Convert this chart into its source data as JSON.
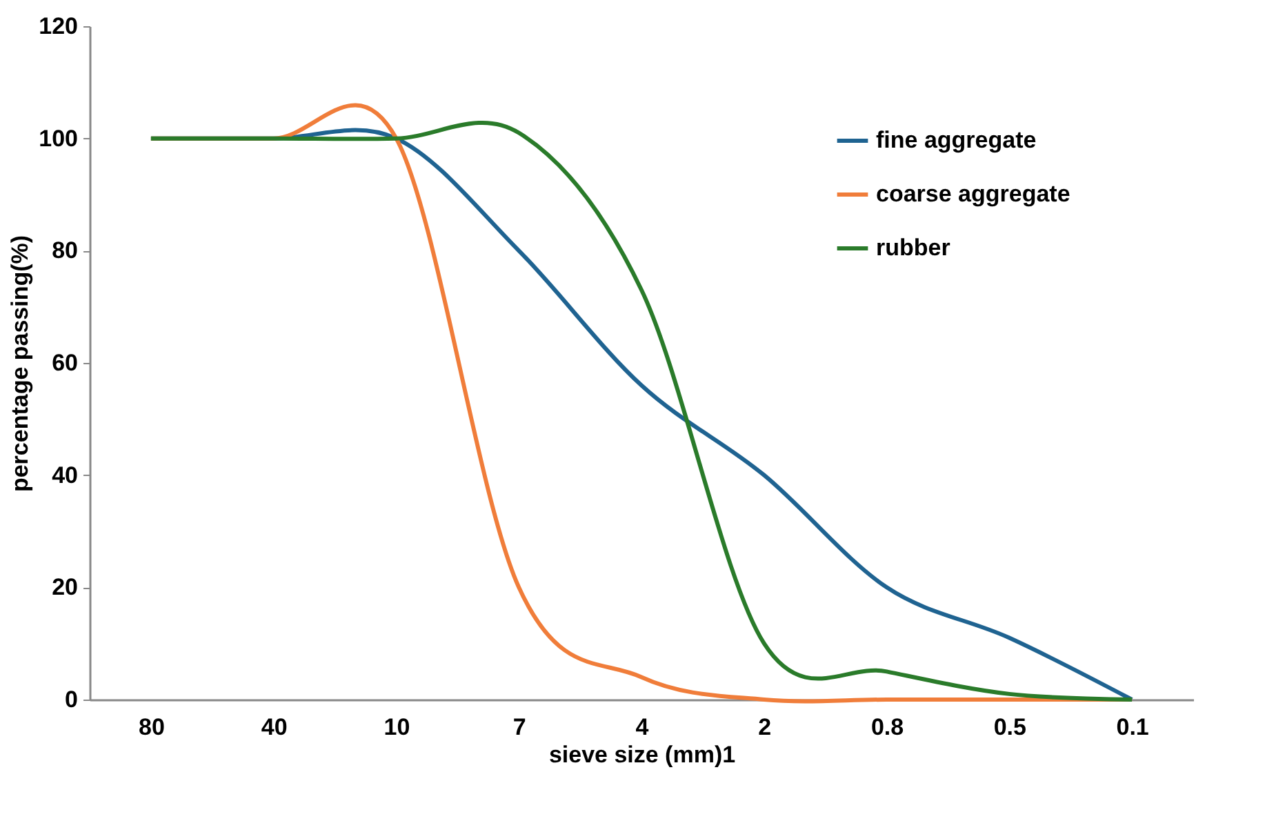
{
  "chart_data": {
    "type": "line",
    "xlabel": "sieve size (mm)1",
    "ylabel": "percentage passing(%)",
    "categories": [
      "80",
      "40",
      "10",
      "7",
      "4",
      "2",
      "0.8",
      "0.5",
      "0.1"
    ],
    "series": [
      {
        "name": "fine aggregate",
        "color": "#1f6391",
        "values": [
          100,
          100,
          100,
          80,
          56,
          40,
          20,
          11,
          0
        ]
      },
      {
        "name": "coarse aggregate",
        "color": "#f07d3a",
        "values": [
          100,
          100,
          100,
          20,
          4,
          0,
          0,
          0,
          0
        ]
      },
      {
        "name": "rubber",
        "color": "#2a7b2a",
        "values": [
          100,
          100,
          100,
          101,
          73,
          10,
          5,
          1,
          0
        ]
      }
    ],
    "ylim": [
      0,
      120
    ],
    "yticks": [
      0,
      20,
      40,
      60,
      80,
      100,
      120
    ],
    "grid": false,
    "legend": "top right",
    "marker": "none",
    "line_style": "solid"
  }
}
